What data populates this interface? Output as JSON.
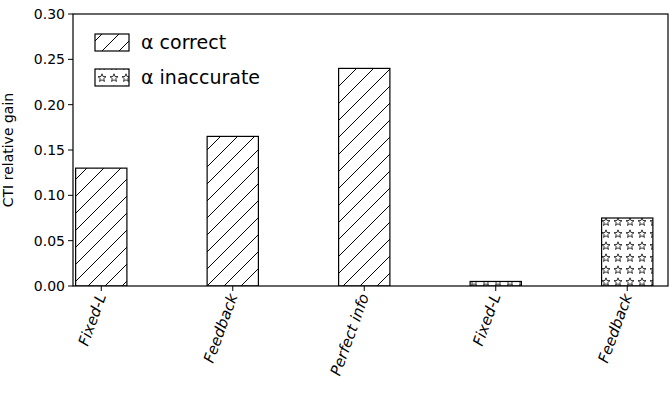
{
  "chart_data": {
    "type": "bar",
    "categories": [
      "Fixed-L",
      "Feedback",
      "Perfect info",
      "Fixed-L",
      "Feedback"
    ],
    "series": [
      {
        "name": "α correct",
        "color": "#000000",
        "values": [
          0.13,
          0.165,
          0.24,
          null,
          null
        ]
      },
      {
        "name": "α inaccurate",
        "color": "#000000",
        "values": [
          null,
          null,
          null,
          0.005,
          0.075
        ]
      }
    ],
    "y_label": "CTI relative gain",
    "ylim": [
      0,
      0.3
    ],
    "yticks": [
      {
        "value": 0,
        "label": "0.00"
      },
      {
        "value": 0.05,
        "label": "0.05"
      },
      {
        "value": 0.1,
        "label": "0.10"
      },
      {
        "value": 0.15,
        "label": "0.15"
      },
      {
        "value": 0.2,
        "label": "0.20"
      },
      {
        "value": 0.25,
        "label": "0.25"
      },
      {
        "value": 0.3,
        "label": "0.30"
      }
    ],
    "grid": false,
    "legend": "upper left"
  }
}
